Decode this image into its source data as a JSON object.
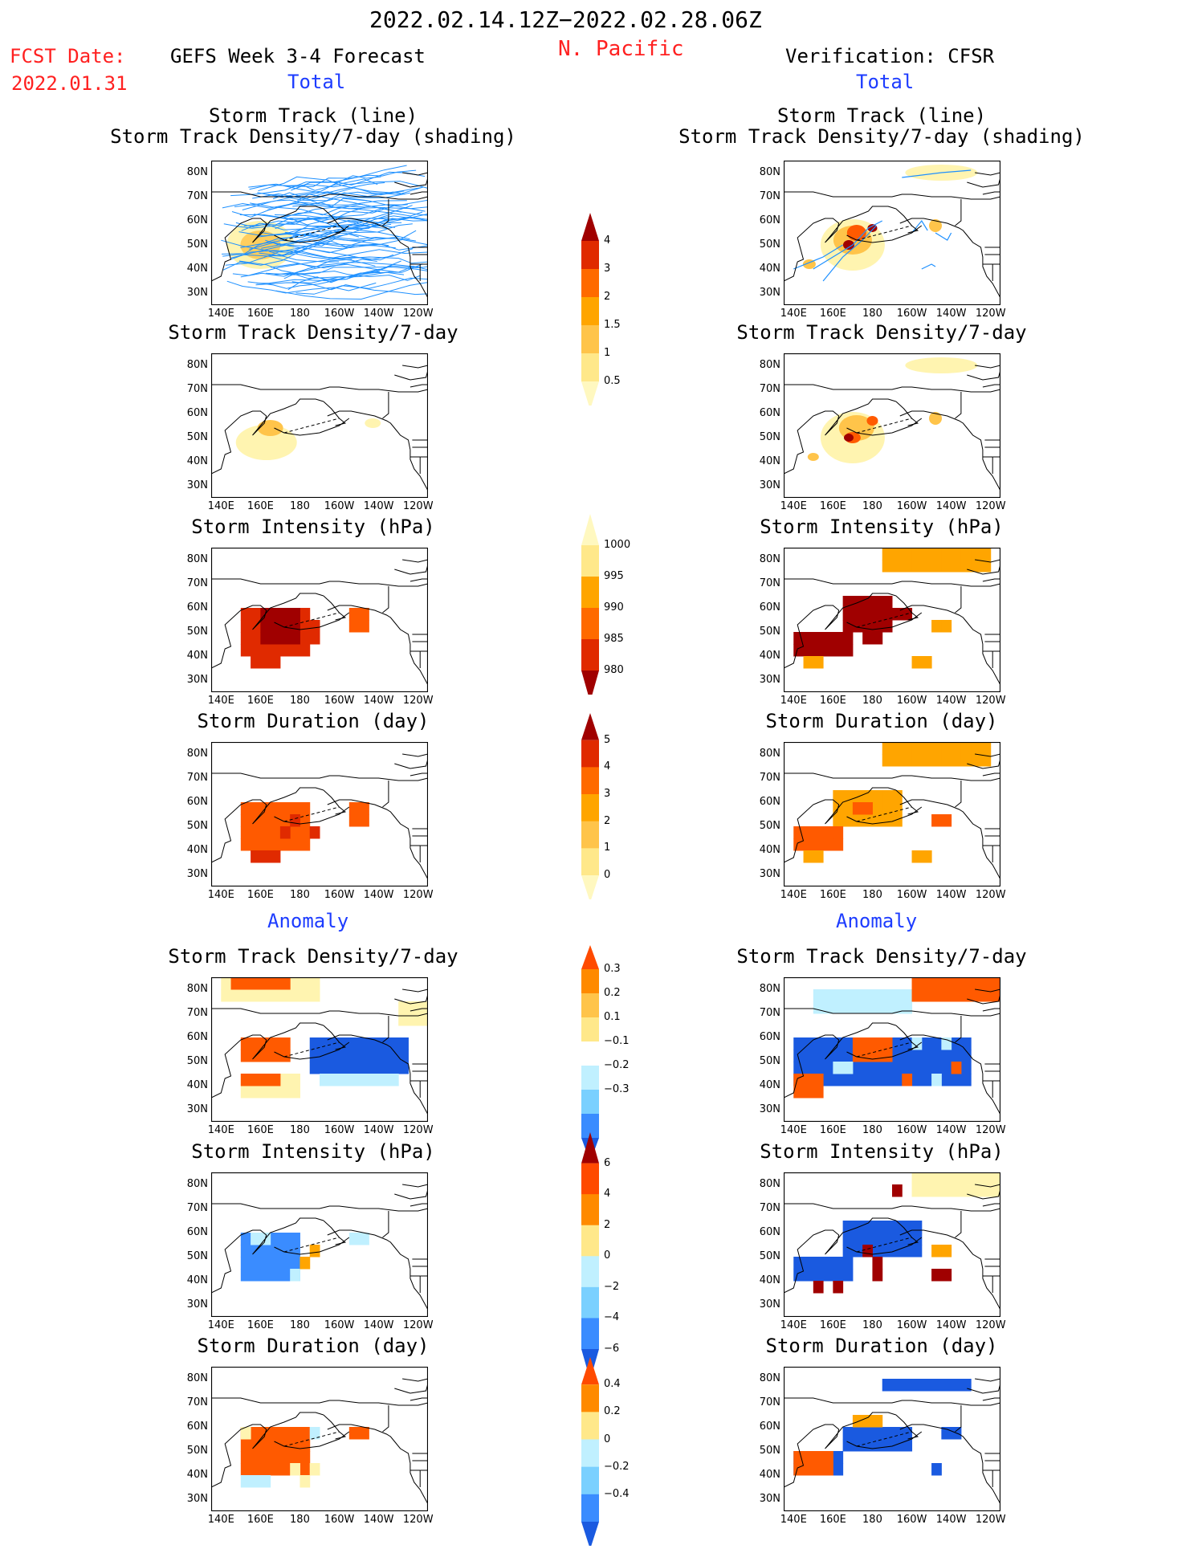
{
  "header": {
    "period": "2022.02.14.12Z−2022.02.28.06Z",
    "region": "N. Pacific",
    "fcst_label": "FCST Date:",
    "fcst_date": "2022.01.31",
    "left_title": "GEFS Week 3-4 Forecast",
    "right_title": "Verification: CFSR",
    "left_sub": "Total",
    "right_sub": "Total",
    "left_anom": "Anomaly",
    "right_anom": "Anomaly"
  },
  "panels": {
    "track_line": [
      "Storm Track (line)",
      "Storm Track Density/7-day (shading)"
    ],
    "density": "Storm Track Density/7-day",
    "intensity": "Storm Intensity (hPa)",
    "duration": "Storm Duration (day)",
    "anom_density": "Storm Track Density/7-day",
    "anom_intensity": "Storm Intensity (hPa)",
    "anom_duration": "Storm Duration (day)"
  },
  "axes": {
    "lat": [
      "80N",
      "70N",
      "60N",
      "50N",
      "40N",
      "30N"
    ],
    "lon": [
      "140E",
      "160E",
      "180",
      "160W",
      "140W",
      "120W"
    ]
  },
  "colorbars": [
    {
      "id": "density",
      "labels": [
        "4",
        "3",
        "2",
        "1.5",
        "1",
        "0.5"
      ],
      "colors": [
        "#a00000",
        "#e02a00",
        "#ff6a00",
        "#ffa500",
        "#ffc44a",
        "#ffe88a",
        "#fff8c0"
      ]
    },
    {
      "id": "intensity",
      "labels": [
        "1000",
        "995",
        "990",
        "985",
        "980"
      ],
      "colors": [
        "#fff8c0",
        "#ffe88a",
        "#ffa500",
        "#ff6a00",
        "#e02a00",
        "#a00000"
      ]
    },
    {
      "id": "duration",
      "labels": [
        "5",
        "4",
        "3",
        "2",
        "1",
        "0"
      ],
      "colors": [
        "#a00000",
        "#e02a00",
        "#ff6a00",
        "#ffa500",
        "#ffc44a",
        "#ffe88a",
        "#fff8c0"
      ]
    },
    {
      "id": "anom_density",
      "labels": [
        "0.3",
        "0.2",
        "0.1",
        "−0.1",
        "−0.2",
        "−0.3"
      ],
      "colors": [
        "#ff4a00",
        "#ff8a00",
        "#ffc44a",
        "#ffe88a",
        "#ffffff",
        "#c0f0ff",
        "#7ad0ff",
        "#3a8cff",
        "#1a5ae0"
      ]
    },
    {
      "id": "anom_intensity",
      "labels": [
        "6",
        "4",
        "2",
        "0",
        "−2",
        "−4",
        "−6"
      ],
      "colors": [
        "#a00000",
        "#ff4a00",
        "#ff8a00",
        "#ffe88a",
        "#c0f0ff",
        "#7ad0ff",
        "#3a8cff",
        "#1a5ae0"
      ]
    },
    {
      "id": "anom_duration",
      "labels": [
        "0.4",
        "0.2",
        "0",
        "−0.2",
        "−0.4"
      ],
      "colors": [
        "#ff4a00",
        "#ff8a00",
        "#ffe88a",
        "#c0f0ff",
        "#7ad0ff",
        "#3a8cff",
        "#1a5ae0"
      ]
    }
  ],
  "palette": {
    "land_line": "#000000",
    "track_line": "#1e90ff",
    "deep_red": "#a00000",
    "red": "#e02a00",
    "orange_red": "#ff5a00",
    "orange": "#ffa500",
    "light_orange": "#ffc44a",
    "yellow": "#ffe88a",
    "pale_yellow": "#fff4b0",
    "light_blue": "#c0f0ff",
    "mid_blue": "#3a8cff",
    "dark_blue": "#1a5ae0"
  }
}
